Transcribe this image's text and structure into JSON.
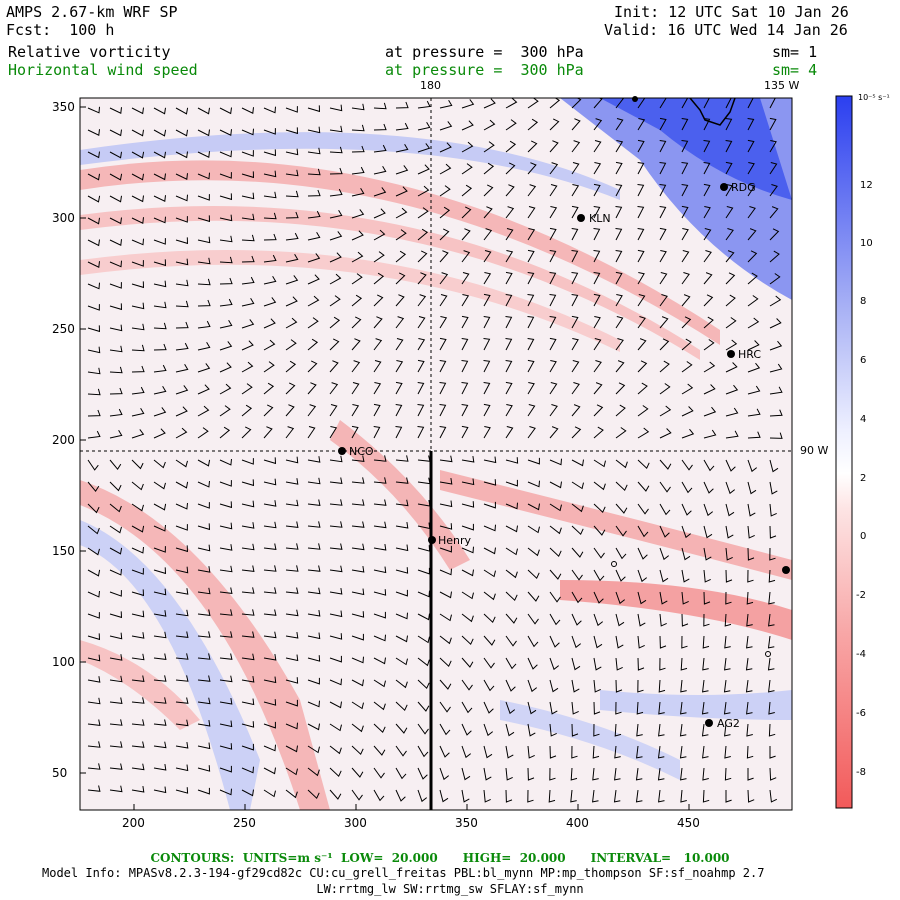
{
  "header": {
    "model": "AMPS 2.67-km WRF SP",
    "init": "Init: 12 UTC Sat 10 Jan 26",
    "fcst": "Fcst:  100 h",
    "valid": "Valid: 16 UTC Wed 14 Jan 26",
    "field1_name": "Relative vorticity",
    "field1_level": "at pressure =  300 hPa",
    "field1_sm": "sm= 1",
    "field2_name": "Horizontal wind speed",
    "field2_level": "at pressure =  300 hPa",
    "field2_sm": "sm= 4"
  },
  "map": {
    "x_ticks": [
      "200",
      "250",
      "300",
      "350",
      "400",
      "450"
    ],
    "y_ticks": [
      "350",
      "300",
      "250",
      "200",
      "150",
      "100",
      "50"
    ],
    "meridian_180": "180",
    "meridian_135w": "135 W",
    "meridian_90w": "90 W",
    "stations": [
      {
        "name": "RDG"
      },
      {
        "name": "KLN"
      },
      {
        "name": "HRC"
      },
      {
        "name": "NCO"
      },
      {
        "name": "Henry"
      },
      {
        "name": "AG2"
      }
    ]
  },
  "colorbar": {
    "units": "10⁻⁵ s⁻¹",
    "labels": [
      "12",
      "10",
      "8",
      "6",
      "4",
      "2",
      "0",
      "-2",
      "-4",
      "-6",
      "-8"
    ],
    "colors_positive": "#2b3ff0",
    "colors_negative": "#f25a5a"
  },
  "footer": {
    "contours": "CONTOURS:  UNITS=m s⁻¹  LOW=  20.000      HIGH=  20.000      INTERVAL=   10.000",
    "model_info": "Model Info: MPASv8.2.3-194-gf29cd82c CU:cu_grell_freitas PBL:bl_mynn MP:mp_thompson SF:sf_noahmp 2.7",
    "physics": "LW:rrtmg_lw SW:rrtmg_sw SFLAY:sf_mynn"
  }
}
